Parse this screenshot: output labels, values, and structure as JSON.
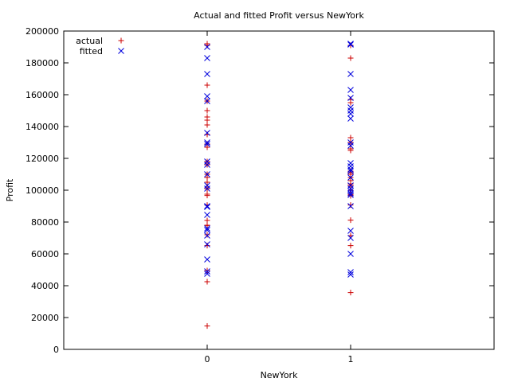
{
  "chart_data": {
    "type": "scatter",
    "title": "Actual and fitted Profit versus NewYork",
    "xlabel": "NewYork",
    "ylabel": "Profit",
    "xlim": [
      -1,
      2
    ],
    "ylim": [
      0,
      200000
    ],
    "x_ticks": [
      0,
      1
    ],
    "y_ticks": [
      0,
      20000,
      40000,
      60000,
      80000,
      100000,
      120000,
      140000,
      160000,
      180000,
      200000
    ],
    "grid": false,
    "legend_position": "top-left",
    "series": [
      {
        "name": "actual",
        "marker": "plus",
        "color": "#cc0000",
        "points": [
          [
            0,
            192000
          ],
          [
            0,
            191000
          ],
          [
            0,
            166000
          ],
          [
            0,
            156000
          ],
          [
            0,
            150000
          ],
          [
            0,
            146000
          ],
          [
            0,
            144000
          ],
          [
            0,
            141000
          ],
          [
            0,
            135000
          ],
          [
            0,
            129000
          ],
          [
            0,
            127000
          ],
          [
            0,
            118000
          ],
          [
            0,
            116000
          ],
          [
            0,
            110000
          ],
          [
            0,
            108000
          ],
          [
            0,
            105000
          ],
          [
            0,
            101000
          ],
          [
            0,
            97500
          ],
          [
            0,
            96700
          ],
          [
            0,
            90700
          ],
          [
            0,
            81000
          ],
          [
            0,
            78000
          ],
          [
            0,
            77800
          ],
          [
            0,
            72000
          ],
          [
            0,
            65200
          ],
          [
            0,
            49500
          ],
          [
            0,
            42500
          ],
          [
            0,
            14700
          ],
          [
            1,
            191000
          ],
          [
            1,
            183000
          ],
          [
            1,
            157000
          ],
          [
            1,
            155000
          ],
          [
            1,
            133000
          ],
          [
            1,
            130000
          ],
          [
            1,
            126000
          ],
          [
            1,
            125000
          ],
          [
            1,
            112000
          ],
          [
            1,
            111000
          ],
          [
            1,
            110000
          ],
          [
            1,
            108000
          ],
          [
            1,
            106000
          ],
          [
            1,
            104000
          ],
          [
            1,
            103000
          ],
          [
            1,
            99900
          ],
          [
            1,
            97400
          ],
          [
            1,
            96800
          ],
          [
            1,
            96500
          ],
          [
            1,
            90700
          ],
          [
            1,
            81200
          ],
          [
            1,
            71500
          ],
          [
            1,
            65200
          ],
          [
            1,
            35700
          ]
        ]
      },
      {
        "name": "fitted",
        "marker": "cross",
        "color": "#0000dd",
        "points": [
          [
            0,
            190000
          ],
          [
            0,
            183000
          ],
          [
            0,
            173000
          ],
          [
            0,
            159000
          ],
          [
            0,
            156000
          ],
          [
            0,
            136000
          ],
          [
            0,
            130000
          ],
          [
            0,
            129000
          ],
          [
            0,
            118000
          ],
          [
            0,
            116000
          ],
          [
            0,
            110000
          ],
          [
            0,
            103000
          ],
          [
            0,
            101000
          ],
          [
            0,
            90000
          ],
          [
            0,
            89500
          ],
          [
            0,
            84500
          ],
          [
            0,
            76000
          ],
          [
            0,
            75000
          ],
          [
            0,
            71500
          ],
          [
            0,
            66000
          ],
          [
            0,
            56500
          ],
          [
            0,
            49000
          ],
          [
            0,
            47500
          ],
          [
            1,
            192000
          ],
          [
            1,
            191500
          ],
          [
            1,
            173000
          ],
          [
            1,
            163000
          ],
          [
            1,
            158000
          ],
          [
            1,
            152000
          ],
          [
            1,
            150000
          ],
          [
            1,
            148000
          ],
          [
            1,
            145000
          ],
          [
            1,
            130000
          ],
          [
            1,
            128000
          ],
          [
            1,
            117000
          ],
          [
            1,
            115000
          ],
          [
            1,
            113000
          ],
          [
            1,
            112000
          ],
          [
            1,
            108000
          ],
          [
            1,
            103000
          ],
          [
            1,
            101000
          ],
          [
            1,
            99500
          ],
          [
            1,
            98000
          ],
          [
            1,
            97000
          ],
          [
            1,
            90000
          ],
          [
            1,
            74500
          ],
          [
            1,
            70000
          ],
          [
            1,
            60000
          ],
          [
            1,
            48500
          ],
          [
            1,
            47000
          ]
        ]
      }
    ]
  }
}
